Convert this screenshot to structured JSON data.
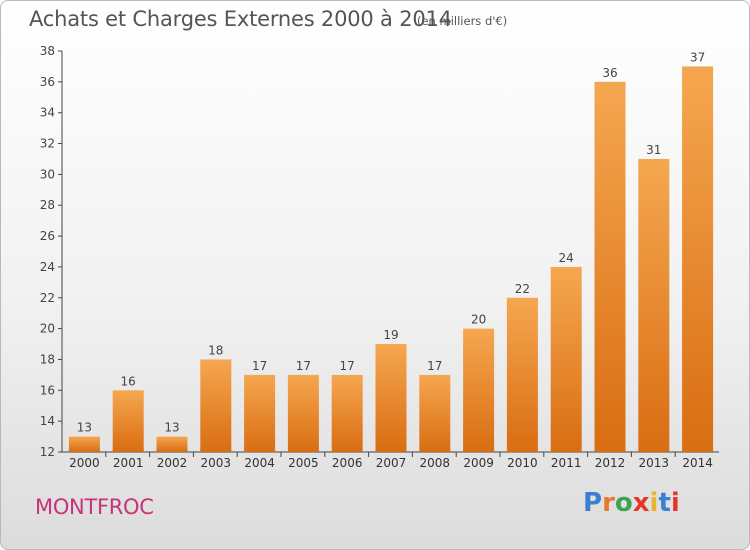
{
  "header": {
    "title": "Achats et Charges Externes 2000 à 2014",
    "subtitle": "(en milliers d'€)"
  },
  "footer": {
    "place": "MONTFROC",
    "brand": "Proxiti"
  },
  "colors": {
    "bar_light": "#f5a750",
    "bar_dark": "#d96d12",
    "place": "#c8327a",
    "brand_letters": [
      "#3a7fd0",
      "#e8782e",
      "#3fa34d",
      "#e8352b",
      "#e8b42e",
      "#3a7fd0",
      "#e8352b"
    ]
  },
  "chart_data": {
    "type": "bar",
    "title": "Achats et Charges Externes 2000 à 2014",
    "subtitle": "(en milliers d'€)",
    "categories": [
      "2000",
      "2001",
      "2002",
      "2003",
      "2004",
      "2005",
      "2006",
      "2007",
      "2008",
      "2009",
      "2010",
      "2011",
      "2012",
      "2013",
      "2014"
    ],
    "values": [
      13,
      16,
      13,
      18,
      17,
      17,
      17,
      19,
      17,
      20,
      22,
      24,
      36,
      31,
      37
    ],
    "ylim": [
      12,
      38
    ],
    "yticks": [
      12,
      14,
      16,
      18,
      20,
      22,
      24,
      26,
      28,
      30,
      32,
      34,
      36,
      38
    ],
    "grid": false,
    "data_labels": true
  }
}
